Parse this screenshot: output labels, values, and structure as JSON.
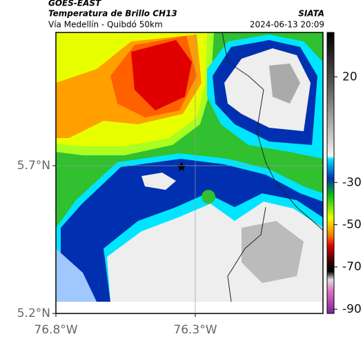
{
  "header": {
    "satellite": "GOES-EAST",
    "title": "Temperatura de Brillo CH13",
    "source": "SIATA",
    "subtitle": "Vía Medellín - Quibdó 50km",
    "timestamp": "2024-06-13 20:09"
  },
  "map": {
    "xlim": [
      -76.8,
      -75.842
    ],
    "ylim": [
      5.2,
      6.151
    ],
    "xticks": [
      {
        "value": -76.8,
        "label": "76.8°W"
      },
      {
        "value": -76.3,
        "label": "76.3°W"
      }
    ],
    "yticks": [
      {
        "value": 5.7,
        "label": "5.7°N"
      },
      {
        "value": 5.2,
        "label": "5.2°N"
      }
    ],
    "grid": true,
    "colorbar": {
      "lim": [
        -92,
        41
      ],
      "ticks": [
        20,
        -30,
        -50,
        -70,
        -90
      ]
    }
  }
}
